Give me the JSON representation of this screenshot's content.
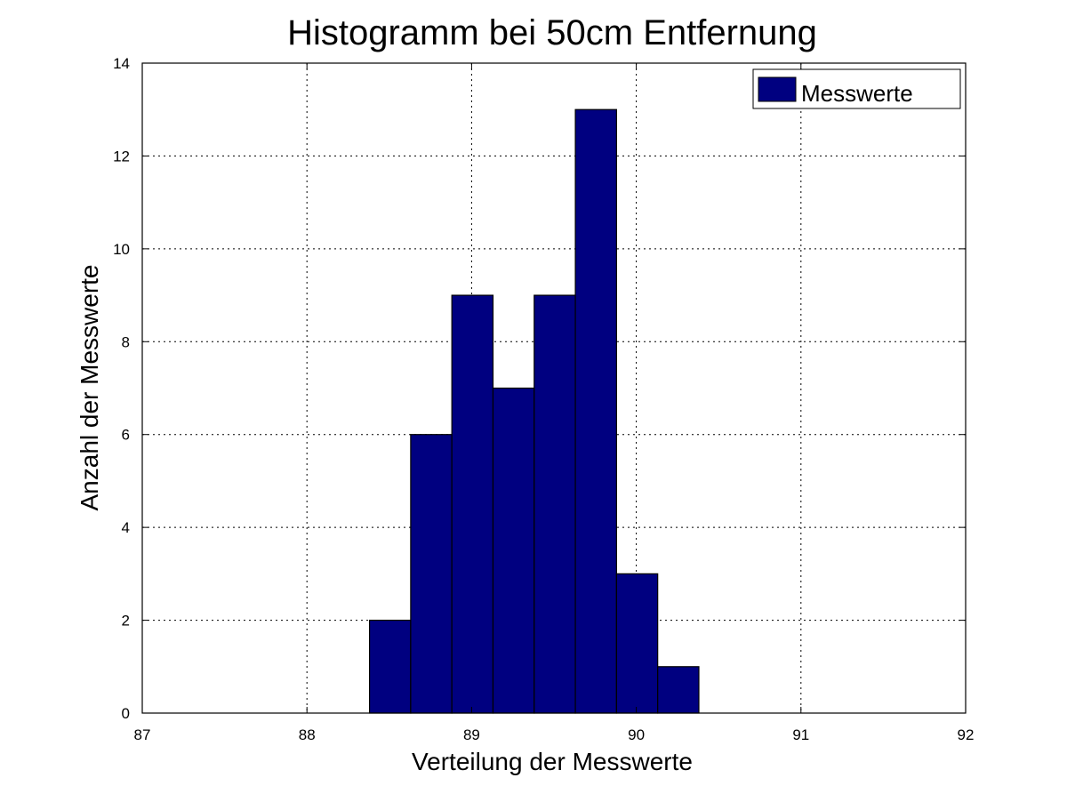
{
  "chart_data": {
    "type": "bar",
    "title": "Histogramm bei 50cm Entfernung",
    "xlabel": "Verteilung der Messwerte",
    "ylabel": "Anzahl der Messwerte",
    "xlim": [
      87,
      92
    ],
    "ylim": [
      0,
      14
    ],
    "xticks": [
      "87",
      "88",
      "89",
      "90",
      "91",
      "92"
    ],
    "yticks": [
      "0",
      "2",
      "4",
      "6",
      "8",
      "10",
      "12",
      "14"
    ],
    "grid": true,
    "legend_position": "top-right",
    "series": [
      {
        "name": "Messwerte",
        "color": "#000080",
        "bins": [
          {
            "start": 88.38,
            "end": 88.63,
            "count": 2
          },
          {
            "start": 88.63,
            "end": 88.88,
            "count": 6
          },
          {
            "start": 88.88,
            "end": 89.13,
            "count": 9
          },
          {
            "start": 89.13,
            "end": 89.38,
            "count": 7
          },
          {
            "start": 89.38,
            "end": 89.63,
            "count": 9
          },
          {
            "start": 89.63,
            "end": 89.88,
            "count": 13
          },
          {
            "start": 89.88,
            "end": 90.13,
            "count": 3
          },
          {
            "start": 90.13,
            "end": 90.38,
            "count": 1
          }
        ]
      }
    ]
  }
}
